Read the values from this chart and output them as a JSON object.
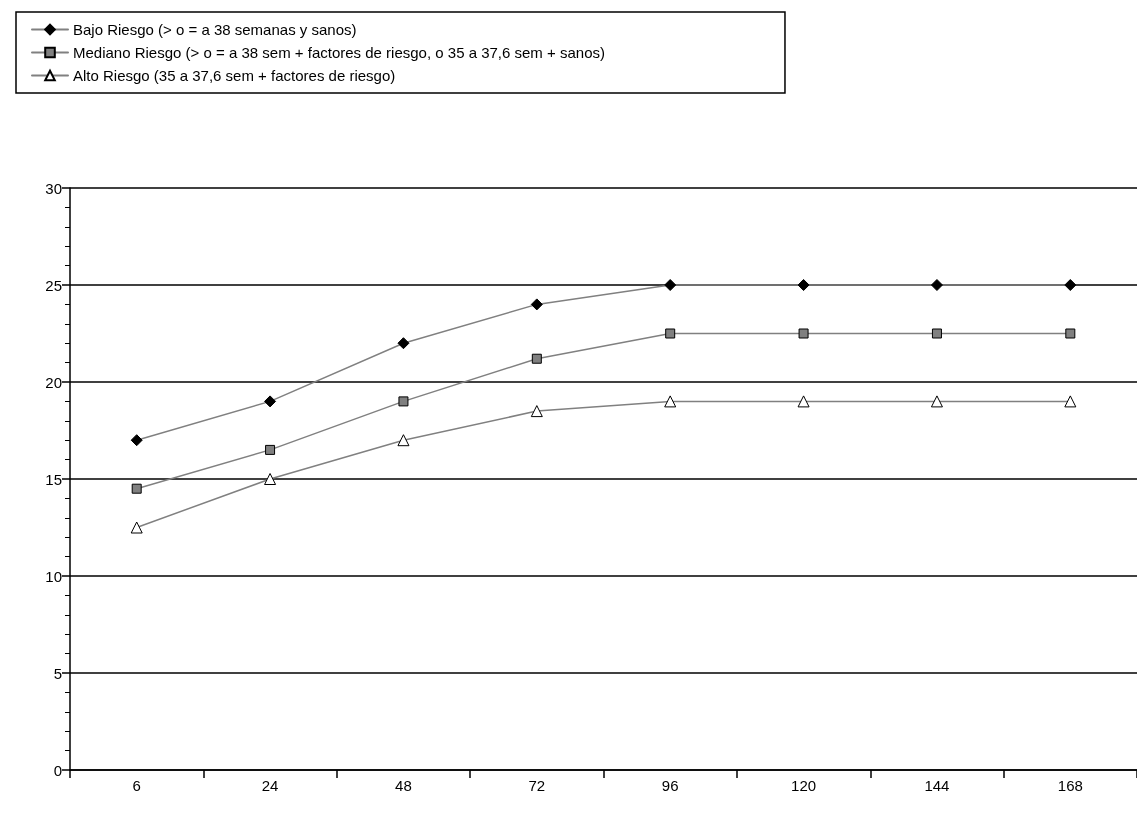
{
  "chart_data": {
    "type": "line",
    "categories": [
      "6",
      "24",
      "48",
      "72",
      "96",
      "120",
      "144",
      "168"
    ],
    "series": [
      {
        "name": "Bajo Riesgo (> o = a 38 semanas y sanos)",
        "color": "#000000",
        "marker": "diamond",
        "values": [
          17,
          19,
          22,
          24,
          25,
          25,
          25,
          25
        ]
      },
      {
        "name": "Mediano Riesgo (> o = a 38 sem + factores de riesgo, o 35 a 37,6 sem + sanos)",
        "color": "#808080",
        "marker": "square",
        "values": [
          14.5,
          16.5,
          19,
          21.2,
          22.5,
          22.5,
          22.5,
          22.5
        ]
      },
      {
        "name": "Alto Riesgo (35 a 37,6 sem + factores de riesgo)",
        "color": "#ffffff",
        "marker": "triangle",
        "values": [
          12.5,
          15,
          17,
          18.5,
          19,
          19,
          19,
          19
        ]
      }
    ],
    "ylim": [
      0,
      30
    ],
    "yticks": [
      0,
      5,
      10,
      15,
      20,
      25,
      30
    ],
    "grid": "y",
    "legend": "top left",
    "line_style": "solid"
  }
}
